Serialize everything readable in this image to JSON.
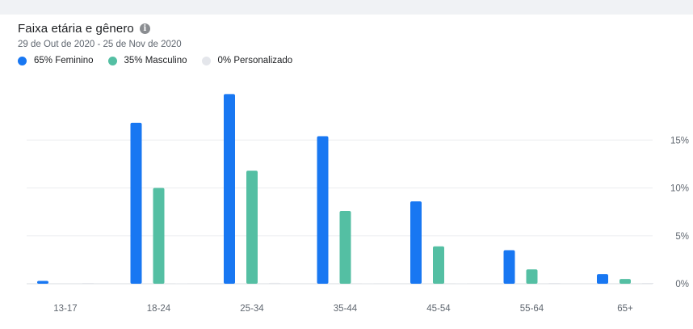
{
  "header": {
    "title": "Faixa etária e gênero",
    "subtitle": "29 de Out de 2020 - 25 de Nov de 2020",
    "info_icon": "info-icon"
  },
  "legend": [
    {
      "label": "65% Feminino",
      "color": "#1877f2"
    },
    {
      "label": "35% Masculino",
      "color": "#54bfa3"
    },
    {
      "label": "0% Personalizado",
      "color": "#e4e6eb"
    }
  ],
  "chart_data": {
    "type": "bar",
    "categories": [
      "13-17",
      "18-24",
      "25-34",
      "35-44",
      "45-54",
      "55-64",
      "65+"
    ],
    "series": [
      {
        "name": "Feminino",
        "color": "#1877f2",
        "values": [
          0.3,
          16.8,
          19.8,
          15.4,
          8.6,
          3.5,
          1.0
        ]
      },
      {
        "name": "Masculino",
        "color": "#54bfa3",
        "values": [
          0.0,
          10.0,
          11.8,
          7.6,
          3.9,
          1.5,
          0.5
        ]
      },
      {
        "name": "Personalizado",
        "color": "#e4e6eb",
        "values": [
          0.0,
          0.05,
          0.1,
          0.05,
          0.05,
          0.0,
          0.0
        ]
      }
    ],
    "y_ticks": [
      "0%",
      "5%",
      "10%",
      "15%"
    ],
    "ylim": [
      0,
      20
    ],
    "grid": true,
    "y_axis_position": "right"
  }
}
